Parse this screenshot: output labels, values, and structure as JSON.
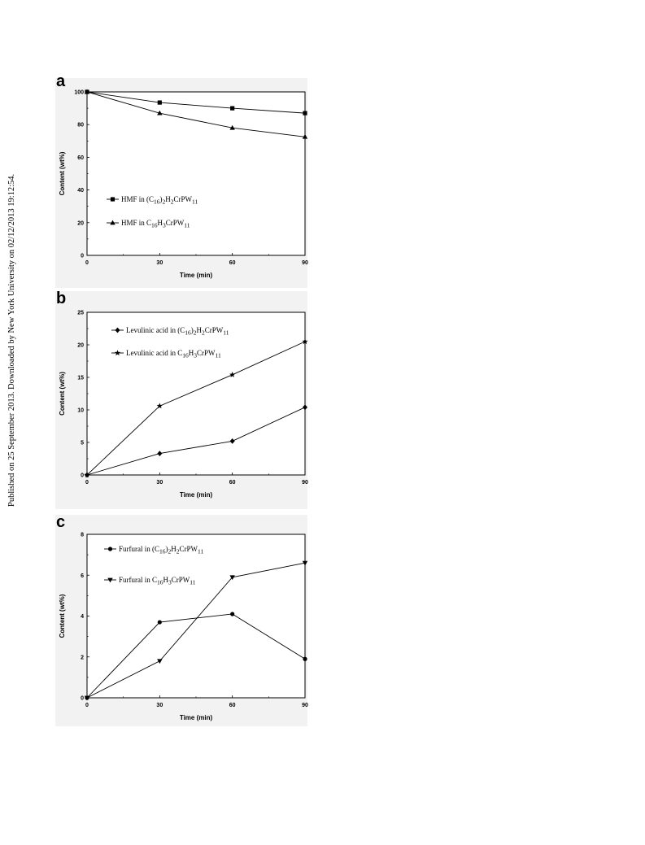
{
  "watermark": "Published on 25 September 2013. Downloaded by New York University on 02/12/2013 19:12:54.",
  "chart_data": [
    {
      "panel": "a",
      "type": "line",
      "xlabel": "Time (min)",
      "ylabel": "Content (wt%)",
      "xlim": [
        0,
        90
      ],
      "ylim": [
        0,
        100
      ],
      "xticks": [
        0,
        30,
        60,
        90
      ],
      "yticks": [
        0,
        20,
        40,
        60,
        80,
        100
      ],
      "legend_position": "lower-left",
      "x": [
        0,
        30,
        60,
        90
      ],
      "series": [
        {
          "name_parts": [
            "HMF in ",
            "(C",
            "16",
            ")",
            "2",
            "H",
            "2",
            "CrPW",
            "11"
          ],
          "marker": "square",
          "values": [
            100,
            93.5,
            90,
            87
          ]
        },
        {
          "name_parts": [
            "HMF in ",
            "C",
            "16",
            "H",
            "3",
            "CrPW",
            "11"
          ],
          "marker": "triangle",
          "values": [
            100,
            87,
            78,
            72.5
          ]
        }
      ]
    },
    {
      "panel": "b",
      "type": "line",
      "xlabel": "Time (min)",
      "ylabel": "Content (wt%)",
      "xlim": [
        0,
        90
      ],
      "ylim": [
        0,
        25
      ],
      "xticks": [
        0,
        30,
        60,
        90
      ],
      "yticks": [
        0,
        5,
        10,
        15,
        20,
        25
      ],
      "legend_position": "upper-left",
      "x": [
        0,
        30,
        60,
        90
      ],
      "series": [
        {
          "name_parts": [
            "Levulinic acid in ",
            "(C",
            "16",
            ")",
            "2",
            "H",
            "2",
            "CrPW",
            "11"
          ],
          "marker": "diamond",
          "values": [
            0,
            3.3,
            5.2,
            10.4
          ]
        },
        {
          "name_parts": [
            "Levulinic acid in ",
            "C",
            "16",
            "H",
            "3",
            "CrPW",
            "11"
          ],
          "marker": "star",
          "values": [
            0,
            10.6,
            15.4,
            20.5
          ]
        }
      ]
    },
    {
      "panel": "c",
      "type": "line",
      "xlabel": "Time (min)",
      "ylabel": "Content (wt%)",
      "xlim": [
        0,
        90
      ],
      "ylim": [
        0,
        8
      ],
      "xticks": [
        0,
        30,
        60,
        90
      ],
      "yticks": [
        0,
        2,
        4,
        6,
        8
      ],
      "legend_position": "upper-left",
      "x": [
        0,
        30,
        60,
        90
      ],
      "series": [
        {
          "name_parts": [
            "Furfural in ",
            "(C",
            "16",
            ")",
            "2",
            "H",
            "2",
            "CrPW",
            "11"
          ],
          "marker": "circle",
          "values": [
            0,
            3.7,
            4.1,
            1.9
          ]
        },
        {
          "name_parts": [
            "Furfural in ",
            "C",
            "16",
            "H",
            "3",
            "CrPW",
            "11"
          ],
          "marker": "down-triangle",
          "values": [
            0,
            1.8,
            5.9,
            6.6
          ]
        }
      ]
    }
  ]
}
